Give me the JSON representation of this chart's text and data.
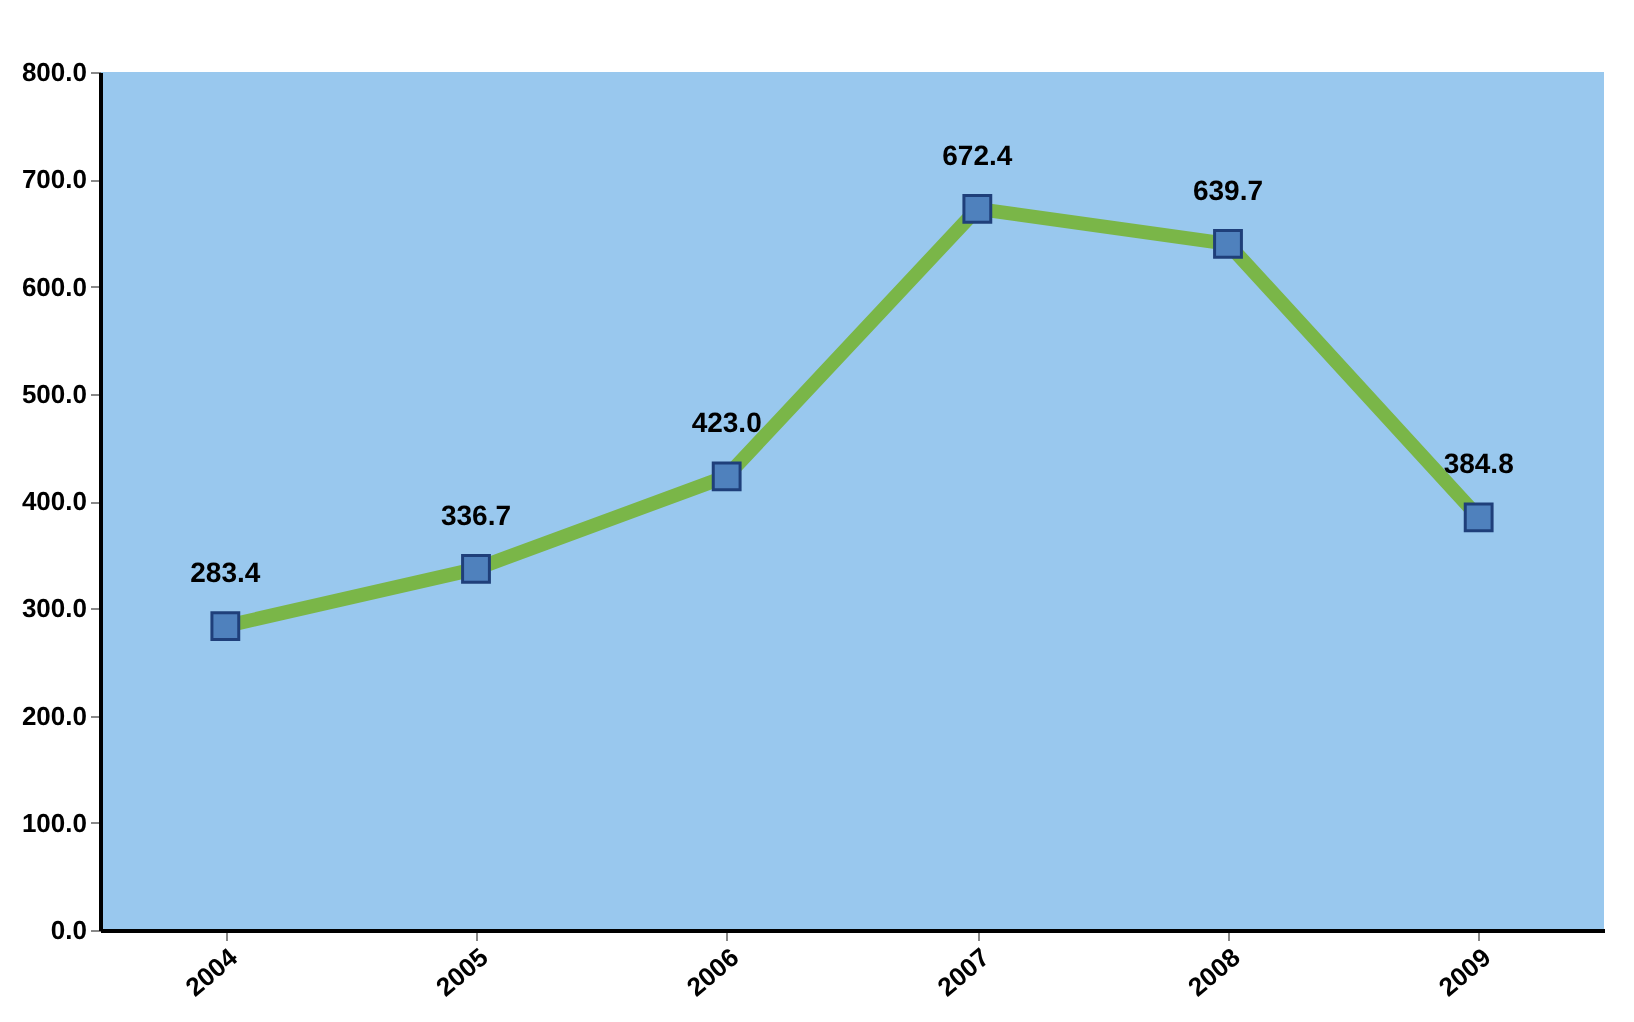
{
  "chart_data": {
    "type": "line",
    "categories": [
      "2004",
      "2005",
      "2006",
      "2007",
      "2008",
      "2009"
    ],
    "series": [
      {
        "color": "#7ab648",
        "values": [
          283.4,
          336.7,
          423.0,
          672.4,
          639.7,
          384.8
        ],
        "value_labels": [
          "283.4",
          "336.7",
          "423.0",
          "672.4",
          "639.7",
          "384.8"
        ]
      }
    ],
    "ylim": [
      0,
      800
    ],
    "yticks": [
      {
        "value": 0,
        "label": "0.0"
      },
      {
        "value": 100,
        "label": "100.0"
      },
      {
        "value": 200,
        "label": "200.0"
      },
      {
        "value": 300,
        "label": "300.0"
      },
      {
        "value": 400,
        "label": "400.0"
      },
      {
        "value": 500,
        "label": "500.0"
      },
      {
        "value": 600,
        "label": "600.0"
      },
      {
        "value": 700,
        "label": "700.0"
      },
      {
        "value": 800,
        "label": "800.0"
      }
    ],
    "marker": "square",
    "grid": false
  }
}
